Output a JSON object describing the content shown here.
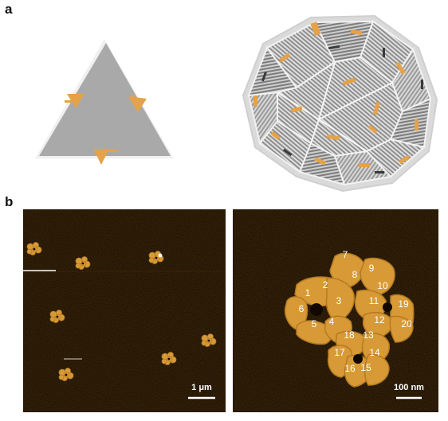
{
  "panel_a": {
    "letter": "a"
  },
  "panel_b": {
    "letter": "b",
    "left_scale_label": "1 μm",
    "right_scale_label": "100 nm",
    "particle_numbers": [
      "1",
      "2",
      "3",
      "4",
      "5",
      "6",
      "7",
      "8",
      "9",
      "10",
      "11",
      "12",
      "13",
      "14",
      "15",
      "16",
      "17",
      "18",
      "19",
      "20"
    ]
  },
  "colors": {
    "background": "#ffffff",
    "afm_background": "#120800",
    "afm_particle": "#d89a36",
    "afm_particle_dark": "#b37a22",
    "tile_gray": "#a8a8a8",
    "accent_orange": "#e4a24a"
  }
}
